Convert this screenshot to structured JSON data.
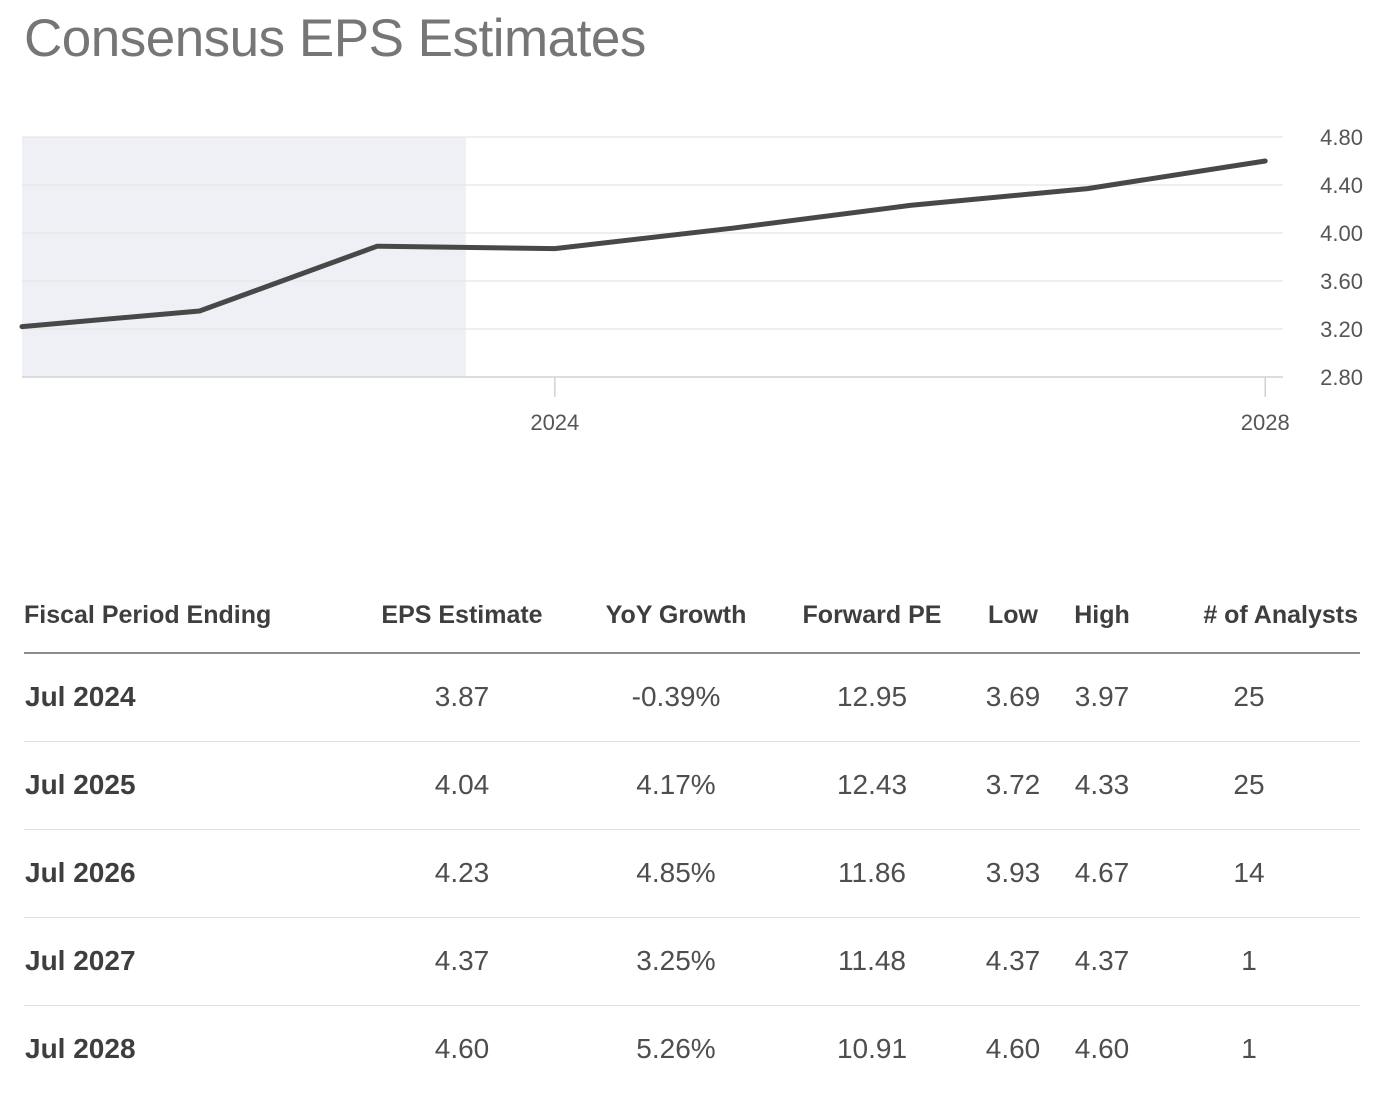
{
  "page": {
    "title": "Consensus EPS Estimates"
  },
  "chart_data": {
    "type": "line",
    "title": "Consensus EPS Estimates",
    "x": [
      2021,
      2022,
      2023,
      2024,
      2025,
      2026,
      2027,
      2028
    ],
    "series": [
      {
        "name": "EPS Estimate",
        "values": [
          3.22,
          3.35,
          3.89,
          3.87,
          4.04,
          4.23,
          4.37,
          4.6
        ]
      }
    ],
    "xlim": [
      2021.0,
      2028.1
    ],
    "ylim": [
      2.8,
      4.8
    ],
    "x_ticks": [
      {
        "value": 2024,
        "label": "2024"
      },
      {
        "value": 2028,
        "label": "2028"
      }
    ],
    "y_ticks": [
      {
        "value": 4.8,
        "label": "4.80"
      },
      {
        "value": 4.4,
        "label": "4.40"
      },
      {
        "value": 4.0,
        "label": "4.00"
      },
      {
        "value": 3.6,
        "label": "3.60"
      },
      {
        "value": 3.2,
        "label": "3.20"
      },
      {
        "value": 2.8,
        "label": "2.80"
      }
    ],
    "shaded_region": {
      "from": 2021.0,
      "to": 2023.5,
      "meaning": "historical period"
    },
    "grid": true,
    "legend": false,
    "y_axis_position": "right",
    "colors": {
      "line": "#484848",
      "shaded": "#eff0f5",
      "grid": "#e5e5e5",
      "axis": "#d2d2d2",
      "tick_label": "#565656"
    }
  },
  "table": {
    "columns": [
      "Fiscal Period Ending",
      "EPS Estimate",
      "YoY Growth",
      "Forward PE",
      "Low",
      "High",
      "# of Analysts"
    ],
    "rows": [
      [
        "Jul 2024",
        "3.87",
        "-0.39%",
        "12.95",
        "3.69",
        "3.97",
        "25"
      ],
      [
        "Jul 2025",
        "4.04",
        "4.17%",
        "12.43",
        "3.72",
        "4.33",
        "25"
      ],
      [
        "Jul 2026",
        "4.23",
        "4.85%",
        "11.86",
        "3.93",
        "4.67",
        "14"
      ],
      [
        "Jul 2027",
        "4.37",
        "3.25%",
        "11.48",
        "4.37",
        "4.37",
        "1"
      ],
      [
        "Jul 2028",
        "4.60",
        "5.26%",
        "10.91",
        "4.60",
        "4.60",
        "1"
      ]
    ]
  }
}
